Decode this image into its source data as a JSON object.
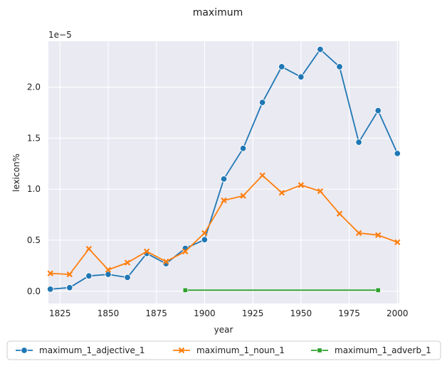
{
  "chart_data": {
    "type": "line",
    "title": "maximum",
    "xlabel": "year",
    "ylabel": "lexicon%",
    "y_offset_label": "1e−5",
    "xlim": [
      1819,
      2001
    ],
    "ylim": [
      -0.12,
      2.45
    ],
    "xticks": [
      1825,
      1850,
      1875,
      1900,
      1925,
      1950,
      1975,
      2000
    ],
    "yticks": [
      0.0,
      0.5,
      1.0,
      1.5,
      2.0
    ],
    "ytick_labels": [
      "0.0",
      "0.5",
      "1.0",
      "1.5",
      "2.0"
    ],
    "grid": true,
    "legend_position": "bottom-center",
    "series": [
      {
        "name": "maximum_1_adjective_1",
        "color": "#1f77b4",
        "marker": "circle",
        "x": [
          1820,
          1830,
          1840,
          1850,
          1860,
          1870,
          1880,
          1890,
          1900,
          1910,
          1920,
          1930,
          1940,
          1950,
          1960,
          1970,
          1980,
          1990,
          2000
        ],
        "y": [
          0.02,
          0.035,
          0.15,
          0.165,
          0.135,
          0.37,
          0.27,
          0.42,
          0.505,
          1.1,
          1.4,
          1.85,
          2.2,
          2.1,
          2.37,
          2.2,
          1.46,
          1.77,
          1.35
        ]
      },
      {
        "name": "maximum_1_noun_1",
        "color": "#ff7f0e",
        "marker": "x",
        "x": [
          1820,
          1830,
          1840,
          1850,
          1860,
          1870,
          1880,
          1890,
          1900,
          1910,
          1920,
          1930,
          1940,
          1950,
          1960,
          1970,
          1980,
          1990,
          2000
        ],
        "y": [
          0.175,
          0.165,
          0.415,
          0.21,
          0.28,
          0.39,
          0.29,
          0.39,
          0.57,
          0.89,
          0.935,
          1.135,
          0.965,
          1.04,
          0.98,
          0.76,
          0.57,
          0.55,
          0.48
        ]
      },
      {
        "name": "maximum_1_adverb_1",
        "color": "#2ca02c",
        "marker": "square",
        "x": [
          1890,
          1990
        ],
        "y": [
          0.01,
          0.01
        ]
      }
    ]
  }
}
